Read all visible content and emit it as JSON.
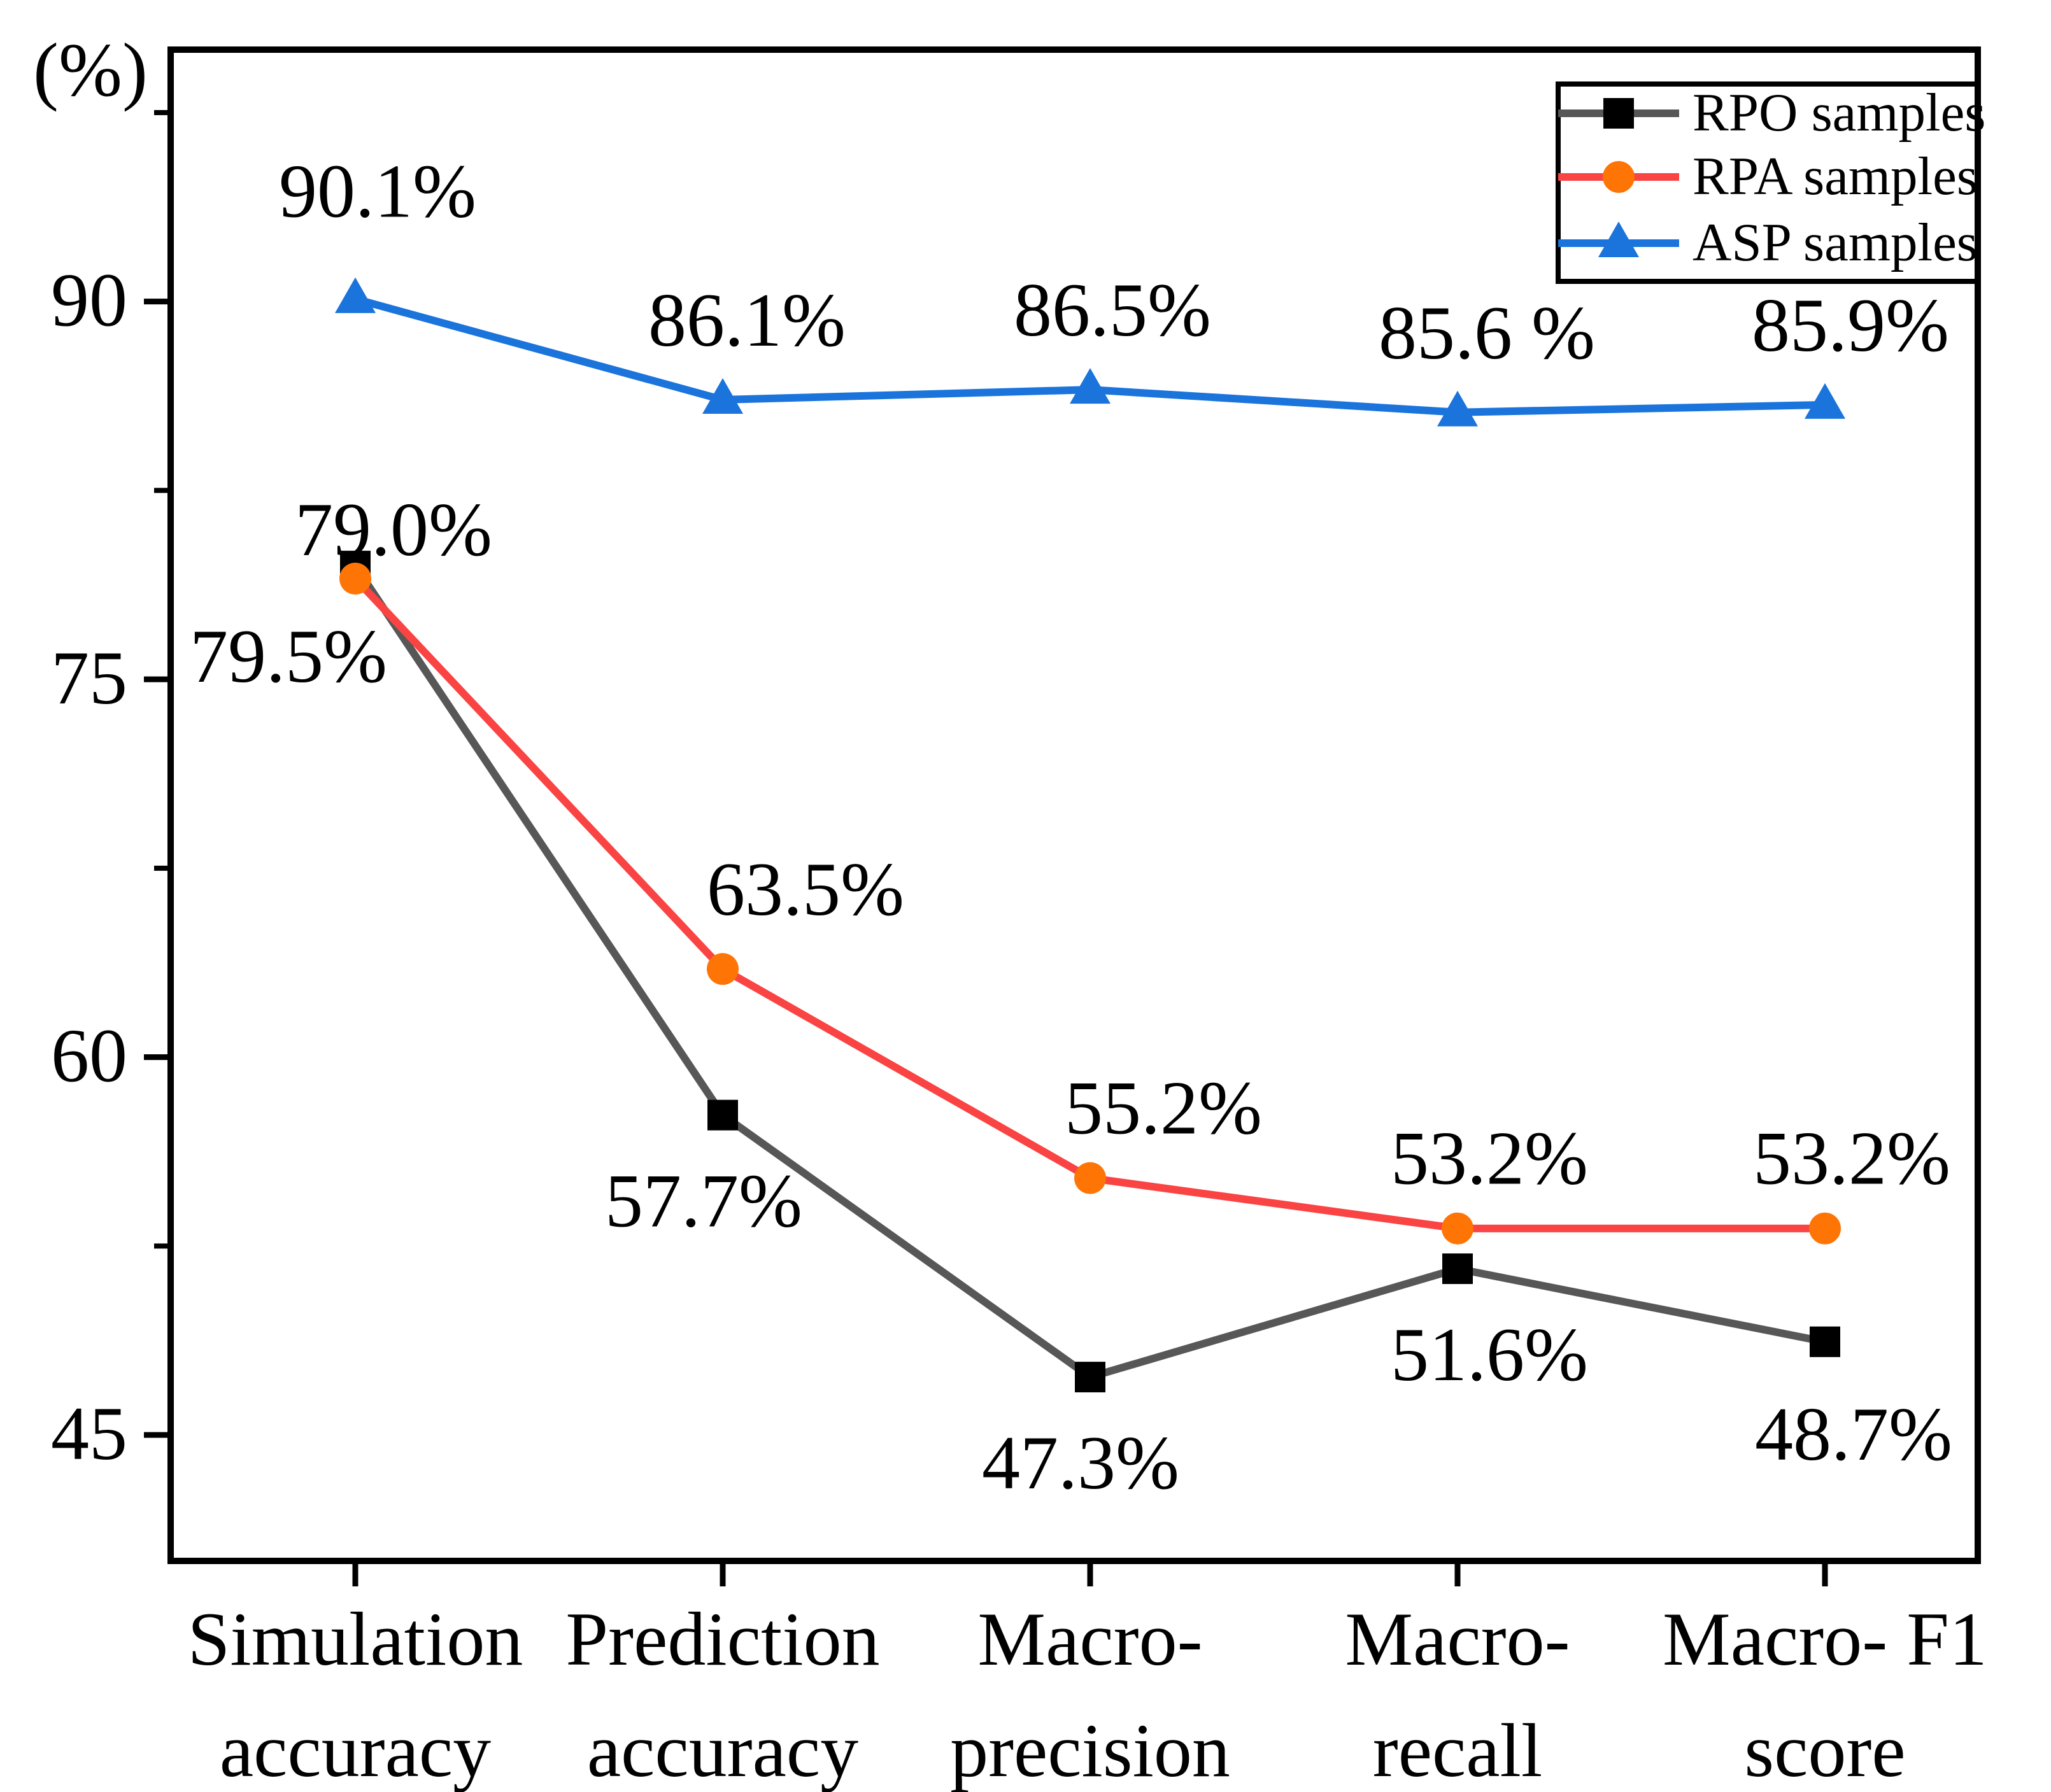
{
  "figure": {
    "unit_label": "(%)"
  },
  "chart_data": {
    "type": "line",
    "title": "",
    "ylabel": "(%)",
    "xlabel": "",
    "ylim": [
      40,
      100
    ],
    "yticks": [
      45,
      60,
      75,
      90
    ],
    "yticks_minor": [
      52.5,
      67.5,
      82.5,
      97.5
    ],
    "grid": false,
    "legend_position": "top-right",
    "axis_color": "#000000",
    "background_color": "#ffffff",
    "categories": [
      "Simulation accuracy",
      "Prediction accuracy",
      "Macro-precision",
      "Macro-recall",
      "Macro- F1 score"
    ],
    "categories_two_line": [
      [
        "Simulation",
        "accuracy"
      ],
      [
        "Prediction",
        "accuracy"
      ],
      [
        "Macro-",
        "precision"
      ],
      [
        "Macro-",
        "recall"
      ],
      [
        "Macro- F1",
        "score"
      ]
    ],
    "series": [
      {
        "name": "RPO samples",
        "marker": "square",
        "marker_color": "#000000",
        "line_color": "#575757",
        "values": [
          79.5,
          57.7,
          47.3,
          51.6,
          48.7
        ],
        "point_labels": [
          "79.5%",
          "57.7%",
          "47.3%",
          "51.6%",
          "48.7%"
        ],
        "label_offsets": [
          [
            -105,
            182
          ],
          [
            -30,
            175
          ],
          [
            -15,
            175
          ],
          [
            50,
            175
          ],
          [
            45,
            185
          ]
        ]
      },
      {
        "name": "RPA samples",
        "marker": "circle",
        "marker_color": "#FE7405",
        "line_color": "#FA4343",
        "values": [
          79.0,
          63.5,
          55.2,
          53.2,
          53.2
        ],
        "point_labels": [
          "79.0%",
          "63.5%",
          "55.2%",
          "53.2%",
          "53.2%"
        ],
        "label_offsets": [
          [
            60,
            -37
          ],
          [
            130,
            -85
          ],
          [
            115,
            -70
          ],
          [
            50,
            -70
          ],
          [
            42,
            -70
          ]
        ]
      },
      {
        "name": "ASP samples",
        "marker": "triangle",
        "marker_color": "#1B74DB",
        "line_color": "#1B74DB",
        "values": [
          90.1,
          86.1,
          86.5,
          85.6,
          85.9
        ],
        "point_labels": [
          "90.1%",
          "86.1%",
          "86.5%",
          "85.6 %",
          "85.9%"
        ],
        "label_offsets": [
          [
            35,
            -129
          ],
          [
            38,
            -85
          ],
          [
            35,
            -85
          ],
          [
            46,
            -85
          ],
          [
            40,
            -85
          ]
        ]
      }
    ]
  }
}
